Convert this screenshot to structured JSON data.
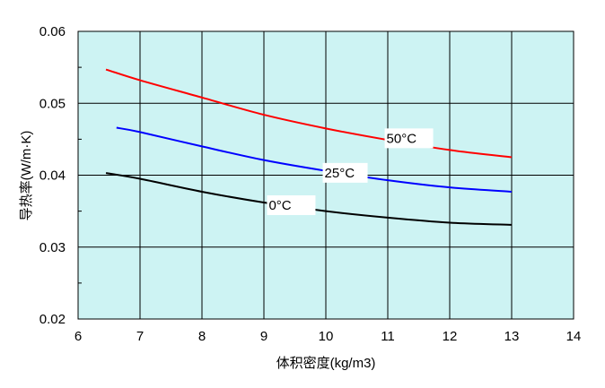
{
  "chart_data": {
    "type": "line",
    "title": "",
    "xlabel": "体积密度(kg/m3)",
    "ylabel": "导热率(W/m·K)",
    "xlim": [
      6,
      14
    ],
    "ylim": [
      0.02,
      0.06
    ],
    "x_ticks": [
      "6",
      "7",
      "8",
      "9",
      "10",
      "11",
      "12",
      "13",
      "14"
    ],
    "y_ticks": [
      "0.02",
      "0.03",
      "0.04",
      "0.05",
      "0.06"
    ],
    "grid": true,
    "series": [
      {
        "name": "50°C",
        "color": "#ff0000",
        "x": [
          6.45,
          7,
          8,
          9,
          10,
          11,
          12,
          13
        ],
        "y": [
          0.0547,
          0.0532,
          0.0508,
          0.0484,
          0.0465,
          0.0449,
          0.0435,
          0.0425
        ]
      },
      {
        "name": "25°C",
        "color": "#0000ff",
        "x": [
          6.62,
          7,
          8,
          9,
          10,
          11,
          12,
          13
        ],
        "y": [
          0.0466,
          0.046,
          0.044,
          0.0421,
          0.0406,
          0.0393,
          0.0383,
          0.0377
        ]
      },
      {
        "name": "0°C",
        "color": "#000000",
        "x": [
          6.45,
          7,
          8,
          9,
          10,
          11,
          12,
          13
        ],
        "y": [
          0.0403,
          0.0395,
          0.0377,
          0.0362,
          0.035,
          0.0341,
          0.0334,
          0.0331
        ]
      }
    ],
    "plot_background": "#cdf3f3",
    "annotations": [
      "50°C",
      "25°C",
      "0°C"
    ]
  }
}
